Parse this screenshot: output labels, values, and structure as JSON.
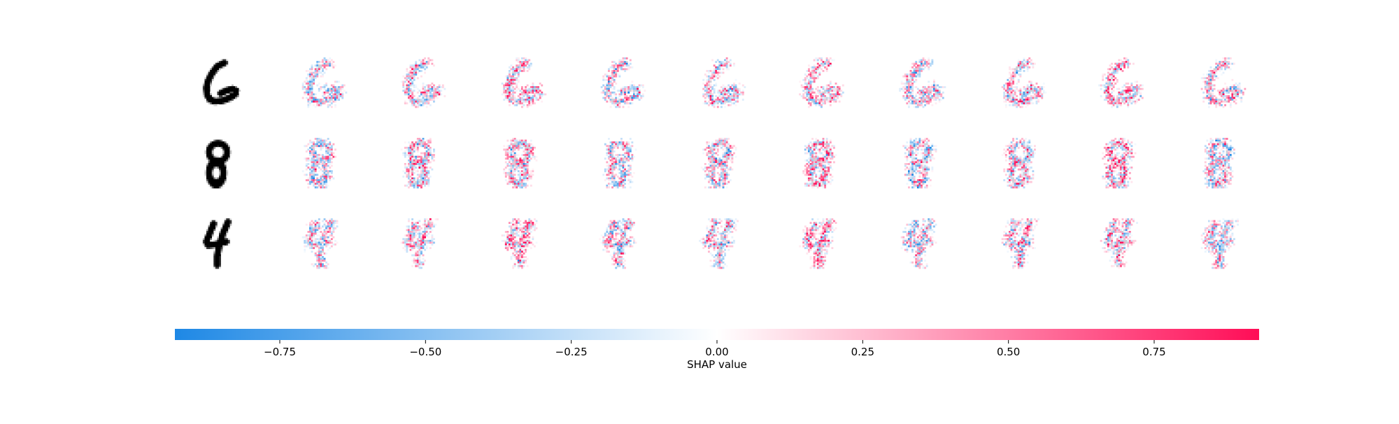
{
  "chart_data": {
    "type": "heatmap",
    "subtype": "shap-image-plot",
    "rows": [
      {
        "input_digit": "6"
      },
      {
        "input_digit": "8"
      },
      {
        "input_digit": "4"
      }
    ],
    "explanation_columns": 10,
    "colorbar": {
      "label": "SHAP value",
      "range": [
        -0.93,
        0.93
      ],
      "ticks": [
        -0.75,
        -0.5,
        -0.25,
        0.0,
        0.25,
        0.5,
        0.75
      ],
      "tick_labels": [
        "−0.75",
        "−0.50",
        "−0.25",
        "0.00",
        "0.25",
        "0.50",
        "0.75"
      ],
      "colors": {
        "negative": "#1e88e5",
        "neutral": "#ffffff",
        "positive": "#ff0d57"
      }
    },
    "grid": false,
    "legend": "colorbar-bottom"
  }
}
